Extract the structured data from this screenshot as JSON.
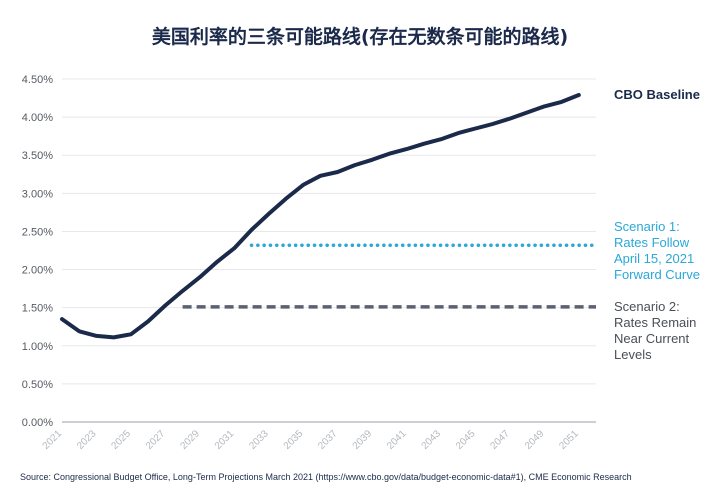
{
  "chart_data": {
    "type": "line",
    "title": "美国利率的三条可能路线(存在无数条可能的路线)",
    "xlabel": "",
    "ylabel": "",
    "x": [
      2021,
      2022,
      2023,
      2024,
      2025,
      2026,
      2027,
      2028,
      2029,
      2030,
      2031,
      2032,
      2033,
      2034,
      2035,
      2036,
      2037,
      2038,
      2039,
      2040,
      2041,
      2042,
      2043,
      2044,
      2045,
      2046,
      2047,
      2048,
      2049,
      2050,
      2051
    ],
    "x_ticks": [
      "2021",
      "2023",
      "2025",
      "2027",
      "2029",
      "2031",
      "2033",
      "2035",
      "2037",
      "2039",
      "2041",
      "2043",
      "2045",
      "2047",
      "2049",
      "2051"
    ],
    "y_ticks": [
      "0.00%",
      "0.50%",
      "1.00%",
      "1.50%",
      "2.00%",
      "2.50%",
      "3.00%",
      "3.50%",
      "4.00%",
      "4.50%"
    ],
    "ylim": [
      0,
      4.5
    ],
    "xlim": [
      2021,
      2052
    ],
    "grid": "horizontal",
    "series": [
      {
        "name": "CBO Baseline",
        "color": "#1b2a4a",
        "style": "solid",
        "label_lines": [
          "CBO Baseline"
        ],
        "x": [
          2021,
          2022,
          2023,
          2024,
          2025,
          2026,
          2027,
          2028,
          2029,
          2030,
          2031,
          2032,
          2033,
          2034,
          2035,
          2036,
          2037,
          2038,
          2039,
          2040,
          2041,
          2042,
          2043,
          2044,
          2045,
          2046,
          2047,
          2048,
          2049,
          2050,
          2051
        ],
        "values": [
          1.35,
          1.19,
          1.13,
          1.11,
          1.15,
          1.32,
          1.53,
          1.72,
          1.9,
          2.1,
          2.28,
          2.52,
          2.73,
          2.93,
          3.11,
          3.23,
          3.28,
          3.37,
          3.44,
          3.52,
          3.58,
          3.65,
          3.71,
          3.79,
          3.85,
          3.91,
          3.98,
          4.06,
          4.14,
          4.2,
          4.29
        ]
      },
      {
        "name": "Scenario 1: Rates Follow April 15, 2021 Forward Curve",
        "color": "#2aa8d8",
        "style": "dotted",
        "label_lines": [
          "Scenario 1:",
          "Rates Follow",
          "April 15, 2021",
          "Forward Curve"
        ],
        "x": [
          2032,
          2052
        ],
        "values": [
          2.32,
          2.32
        ]
      },
      {
        "name": "Scenario 2: Rates Remain Near Current Levels",
        "color": "#5a6270",
        "style": "dashed",
        "label_lines": [
          "Scenario 2:",
          "Rates Remain",
          "Near Current",
          "Levels"
        ],
        "x": [
          2028,
          2052
        ],
        "values": [
          1.51,
          1.51
        ]
      }
    ],
    "source": "Source: Congressional Budget Office, Long-Term Projections March 2021 (https://www.cbo.gov/data/budget-economic-data#1), CME Economic Research"
  }
}
